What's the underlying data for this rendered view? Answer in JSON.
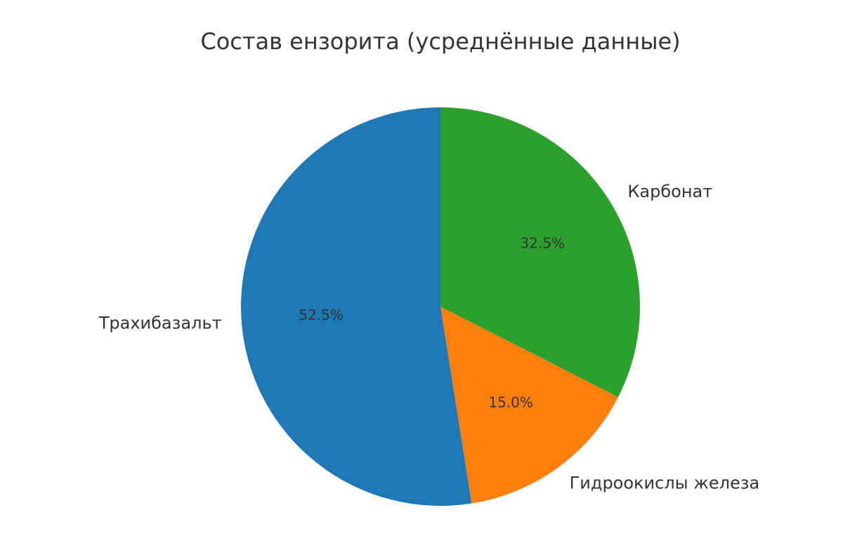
{
  "chart_data": {
    "type": "pie",
    "title": "Состав ензорита (усреднённые данные)",
    "start_angle_deg": 90,
    "direction": "counterclockwise",
    "slices": [
      {
        "label": "Трахибазальт",
        "value": 52.5,
        "pct_text": "52.5%",
        "color": "#1f77b4"
      },
      {
        "label": "Гидроокислы железа",
        "value": 15.0,
        "pct_text": "15.0%",
        "color": "#ff7f0e"
      },
      {
        "label": "Карбонат",
        "value": 32.5,
        "pct_text": "32.5%",
        "color": "#2ca02c"
      }
    ]
  }
}
